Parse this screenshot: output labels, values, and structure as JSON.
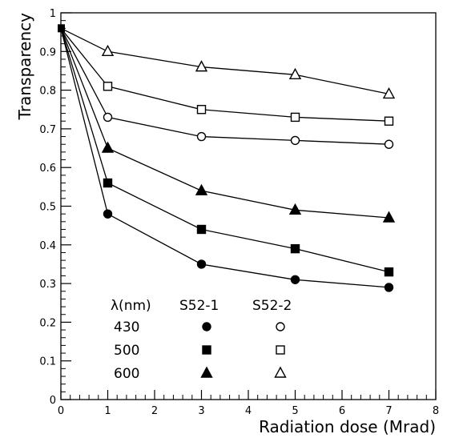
{
  "chart_data": {
    "type": "line",
    "xlabel": "Radiation dose (Mrad)",
    "ylabel": "Transparency",
    "xlim": [
      0,
      8
    ],
    "ylim": [
      0,
      1
    ],
    "x_ticks": [
      "0",
      "1",
      "2",
      "3",
      "4",
      "5",
      "6",
      "7",
      "8"
    ],
    "y_ticks": [
      "0",
      "0.1",
      "0.2",
      "0.3",
      "0.4",
      "0.5",
      "0.6",
      "0.7",
      "0.8",
      "0.9",
      "1"
    ],
    "grid": false,
    "series": [
      {
        "sample": "S52-2",
        "wavelength": "600",
        "marker": "triangle-open",
        "points": [
          [
            0,
            0.96
          ],
          [
            1,
            0.9
          ],
          [
            3,
            0.86
          ],
          [
            5,
            0.84
          ],
          [
            7,
            0.79
          ]
        ]
      },
      {
        "sample": "S52-2",
        "wavelength": "500",
        "marker": "square-open",
        "points": [
          [
            0,
            0.96
          ],
          [
            1,
            0.81
          ],
          [
            3,
            0.75
          ],
          [
            5,
            0.73
          ],
          [
            7,
            0.72
          ]
        ]
      },
      {
        "sample": "S52-2",
        "wavelength": "430",
        "marker": "circle-open",
        "points": [
          [
            0,
            0.96
          ],
          [
            1,
            0.73
          ],
          [
            3,
            0.68
          ],
          [
            5,
            0.67
          ],
          [
            7,
            0.66
          ]
        ]
      },
      {
        "sample": "S52-1",
        "wavelength": "600",
        "marker": "triangle-filled",
        "points": [
          [
            0,
            0.96
          ],
          [
            1,
            0.65
          ],
          [
            3,
            0.54
          ],
          [
            5,
            0.49
          ],
          [
            7,
            0.47
          ]
        ]
      },
      {
        "sample": "S52-1",
        "wavelength": "500",
        "marker": "square-filled",
        "points": [
          [
            0,
            0.96
          ],
          [
            1,
            0.56
          ],
          [
            3,
            0.44
          ],
          [
            5,
            0.39
          ],
          [
            7,
            0.33
          ]
        ]
      },
      {
        "sample": "S52-1",
        "wavelength": "430",
        "marker": "circle-filled",
        "points": [
          [
            0,
            0.96
          ],
          [
            1,
            0.48
          ],
          [
            3,
            0.35
          ],
          [
            5,
            0.31
          ],
          [
            7,
            0.29
          ]
        ]
      }
    ],
    "legend": {
      "placement": "bottom-left",
      "header": {
        "wavelength": "λ(nm)",
        "col1": "S52-1",
        "col2": "S52-2"
      },
      "rows": [
        {
          "label": "430",
          "col1_marker": "circle-filled",
          "col2_marker": "circle-open"
        },
        {
          "label": "500",
          "col1_marker": "square-filled",
          "col2_marker": "square-open"
        },
        {
          "label": "600",
          "col1_marker": "triangle-filled",
          "col2_marker": "triangle-open"
        }
      ]
    }
  }
}
